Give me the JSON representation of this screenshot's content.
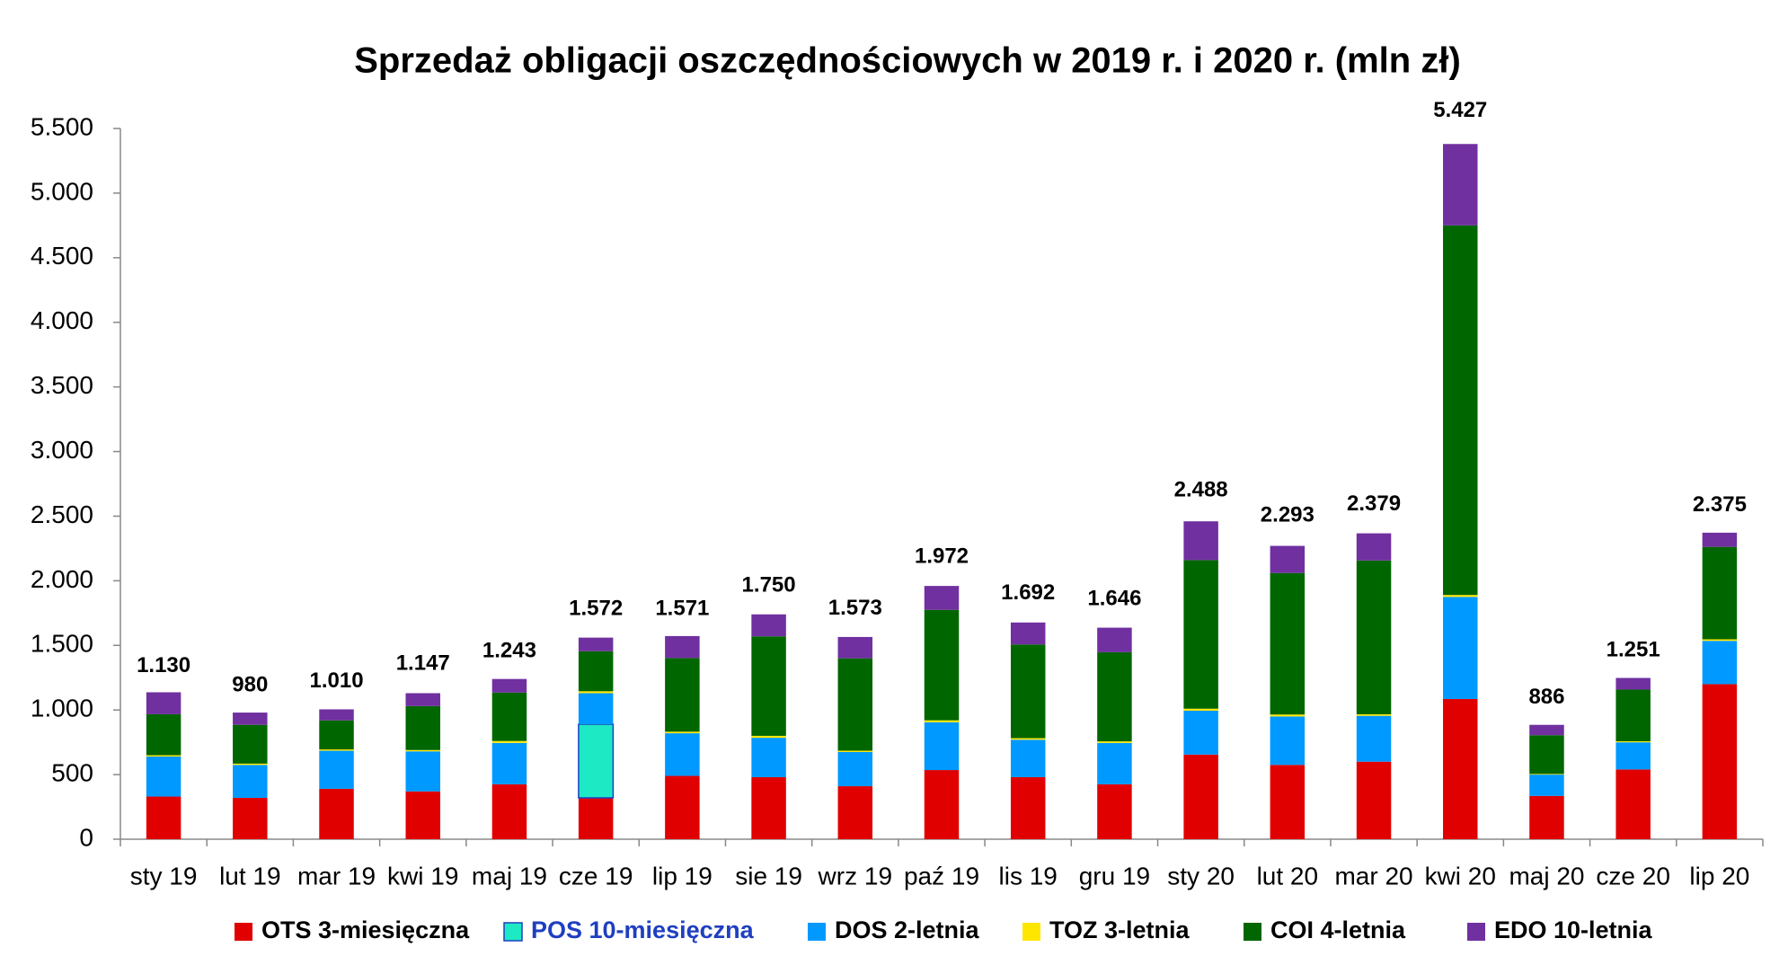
{
  "chart_data": {
    "type": "stacked_bar",
    "title": "Sprzedaż obligacji oszczędnościowych w 2019 r. i 2020 r. (mln zł)",
    "categories": [
      "sty 19",
      "lut 19",
      "mar 19",
      "kwi 19",
      "maj 19",
      "cze 19",
      "lip 19",
      "sie 19",
      "wrz 19",
      "paź 19",
      "lis 19",
      "gru 19",
      "sty 20",
      "lut 20",
      "mar 20",
      "kwi 20",
      "maj 20",
      "cze 20",
      "lip 20"
    ],
    "series": [
      {
        "name": "OTS 3-miesięczna",
        "color": "#e00000",
        "values": [
          330,
          320,
          390,
          370,
          425,
          320,
          490,
          480,
          410,
          535,
          480,
          425,
          655,
          575,
          600,
          1085,
          335,
          540,
          1200
        ]
      },
      {
        "name": "POS 10-miesięczna",
        "color": "#1de9c5",
        "values": [
          null,
          null,
          null,
          null,
          null,
          570,
          null,
          null,
          null,
          null,
          null,
          null,
          null,
          null,
          null,
          null,
          null,
          null,
          null
        ]
      },
      {
        "name": "DOS 2-letnia",
        "color": "#0099ff",
        "values": [
          310,
          255,
          295,
          310,
          320,
          240,
          330,
          305,
          265,
          370,
          290,
          320,
          340,
          375,
          355,
          790,
          165,
          210,
          335
        ]
      },
      {
        "name": "TOZ 3-letnia",
        "color": "#ffe600",
        "values": [
          10,
          10,
          10,
          10,
          15,
          15,
          12,
          15,
          10,
          15,
          12,
          12,
          15,
          15,
          12,
          15,
          5,
          8,
          12
        ]
      },
      {
        "name": "COI 4-letnia",
        "color": "#006600",
        "values": [
          317,
          300,
          225,
          340,
          375,
          310,
          570,
          770,
          715,
          855,
          725,
          690,
          1150,
          1095,
          1190,
          2860,
          300,
          400,
          715
        ]
      },
      {
        "name": "EDO 10-letnia",
        "color": "#7030a0",
        "values": [
          170,
          95,
          85,
          100,
          105,
          105,
          170,
          170,
          165,
          185,
          170,
          190,
          300,
          210,
          210,
          630,
          80,
          90,
          110
        ]
      }
    ],
    "totals": [
      {
        "value": 1130,
        "label": "1.130"
      },
      980,
      {
        "value": 1010,
        "label": "1.010"
      },
      {
        "value": 1147,
        "label": "1.147"
      },
      {
        "value": 1243,
        "label": "1.243"
      },
      {
        "value": 1572,
        "label": "1.572"
      },
      {
        "value": 1571,
        "label": "1.571"
      },
      {
        "value": 1750,
        "label": "1.750"
      },
      {
        "value": 1573,
        "label": "1.573"
      },
      {
        "value": 1972,
        "label": "1.972"
      },
      {
        "value": 1692,
        "label": "1.692"
      },
      {
        "value": 1646,
        "label": "1.646"
      },
      {
        "value": 2488,
        "label": "2.488"
      },
      {
        "value": 2293,
        "label": "2.293"
      },
      {
        "value": 2379,
        "label": "2.379"
      },
      {
        "value": 5427,
        "label": "5.427"
      },
      886,
      {
        "value": 1251,
        "label": "1.251"
      },
      {
        "value": 2375,
        "label": "2.375"
      }
    ],
    "ylim": [
      0,
      5500
    ],
    "yticks": [
      0,
      500,
      {
        "value": 1000,
        "label": "1.000"
      },
      {
        "value": 1500,
        "label": "1.500"
      },
      {
        "value": 2000,
        "label": "2.000"
      },
      {
        "value": 2500,
        "label": "2.500"
      },
      {
        "value": 3000,
        "label": "3.000"
      },
      {
        "value": 3500,
        "label": "3.500"
      },
      {
        "value": 4000,
        "label": "4.000"
      },
      {
        "value": 4500,
        "label": "4.500"
      },
      {
        "value": 5000,
        "label": "5.000"
      },
      {
        "value": 5500,
        "label": "5.500"
      }
    ],
    "grid": false,
    "legend": "bottom"
  }
}
